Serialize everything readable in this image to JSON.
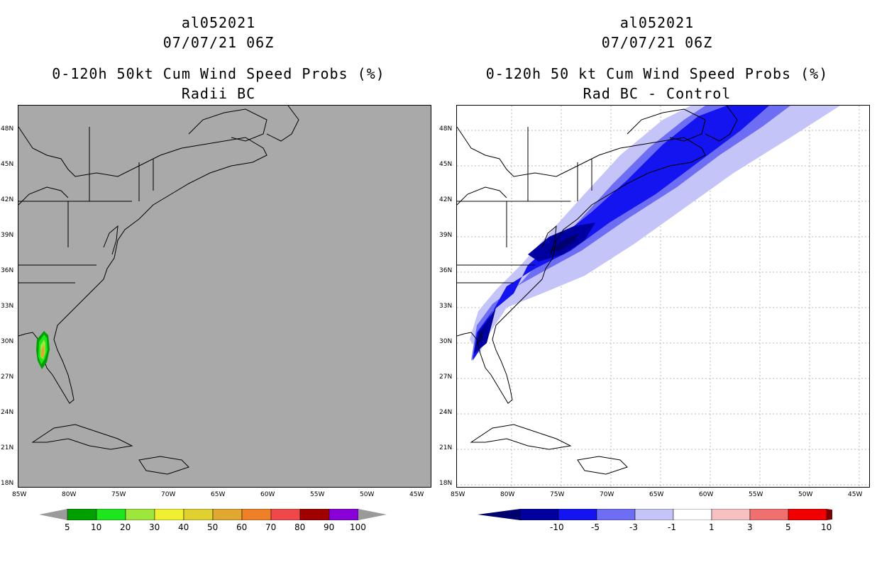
{
  "left_panel": {
    "storm_id": "al052021",
    "datetime": "07/07/21 06Z",
    "product": "0-120h 50kt Cum Wind Speed Probs (%)",
    "subtitle": "Radii BC",
    "colorbar": {
      "labels": [
        "5",
        "10",
        "20",
        "30",
        "40",
        "50",
        "60",
        "70",
        "80",
        "90",
        "100"
      ],
      "colors": [
        "#00a000",
        "#1ee61e",
        "#9de63a",
        "#f0f030",
        "#e0d030",
        "#e0a830",
        "#f08028",
        "#f04848",
        "#a00000",
        "#8a00d8"
      ],
      "end_color": "#9a9a9a"
    },
    "background_color": "#a9a9a9"
  },
  "right_panel": {
    "storm_id": "al052021",
    "datetime": "07/07/21 06Z",
    "product": "0-120h 50 kt Cum Wind Speed Probs (%)",
    "subtitle": "Rad BC - Control",
    "colorbar": {
      "labels": [
        "-10",
        "-5",
        "-3",
        "-1",
        "1",
        "3",
        "5",
        "10"
      ],
      "colors": [
        "#0000a0",
        "#1414f0",
        "#6e6ef5",
        "#c4c4f8",
        "#ffffff",
        "#f8c0c0",
        "#f07070",
        "#f00000"
      ],
      "left_end_color": "#00006e",
      "right_end_color": "#780000"
    },
    "background_color": "#ffffff"
  },
  "axes": {
    "lat_labels": [
      "48N",
      "45N",
      "42N",
      "39N",
      "36N",
      "33N",
      "30N",
      "27N",
      "24N",
      "21N",
      "18N"
    ],
    "lon_labels": [
      "85W",
      "80W",
      "75W",
      "70W",
      "65W",
      "60W",
      "55W",
      "50W",
      "45W"
    ]
  }
}
